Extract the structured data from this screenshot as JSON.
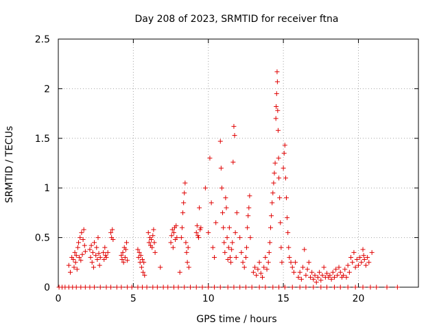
{
  "chart_data": {
    "type": "scatter",
    "title": "Day 208 of 2023, SRMTID for receiver ftna",
    "xlabel": "GPS time / hours",
    "ylabel": "SRMTID / TECUs",
    "xlim": [
      0,
      24
    ],
    "ylim": [
      0,
      2.5
    ],
    "xticks": [
      0,
      5,
      10,
      15,
      20
    ],
    "xtick_labels": [
      "0",
      "5",
      "10",
      "15",
      "20"
    ],
    "yticks": [
      0,
      0.5,
      1,
      1.5,
      2,
      2.5
    ],
    "ytick_labels": [
      "0",
      "0.5",
      "1",
      "1.5",
      "2",
      "2.5"
    ],
    "grid": true,
    "marker": "+",
    "color": "#e00000",
    "series": [
      {
        "name": "SRMTID",
        "points": [
          [
            0.05,
            0
          ],
          [
            0.25,
            0
          ],
          [
            0.45,
            0
          ],
          [
            0.7,
            0
          ],
          [
            0.95,
            0
          ],
          [
            1.2,
            0
          ],
          [
            1.5,
            0
          ],
          [
            1.8,
            0
          ],
          [
            2.1,
            0
          ],
          [
            2.4,
            0
          ],
          [
            2.8,
            0
          ],
          [
            3.2,
            0
          ],
          [
            3.5,
            0
          ],
          [
            3.9,
            0
          ],
          [
            4.2,
            0
          ],
          [
            4.6,
            0
          ],
          [
            4.9,
            0
          ],
          [
            5.3,
            0
          ],
          [
            5.6,
            0
          ],
          [
            5.9,
            0
          ],
          [
            6.3,
            0
          ],
          [
            6.6,
            0
          ],
          [
            7.0,
            0
          ],
          [
            7.3,
            0
          ],
          [
            7.7,
            0
          ],
          [
            8.0,
            0
          ],
          [
            8.4,
            0
          ],
          [
            8.8,
            0
          ],
          [
            9.2,
            0
          ],
          [
            9.6,
            0
          ],
          [
            10.0,
            0
          ],
          [
            10.4,
            0
          ],
          [
            10.8,
            0
          ],
          [
            11.3,
            0
          ],
          [
            11.7,
            0
          ],
          [
            12.1,
            0
          ],
          [
            12.5,
            0
          ],
          [
            12.9,
            0
          ],
          [
            13.4,
            0
          ],
          [
            13.8,
            0
          ],
          [
            14.3,
            0
          ],
          [
            14.7,
            0
          ],
          [
            15.1,
            0
          ],
          [
            15.6,
            0
          ],
          [
            16.1,
            0
          ],
          [
            16.5,
            0
          ],
          [
            17.0,
            0
          ],
          [
            17.5,
            0
          ],
          [
            17.9,
            0
          ],
          [
            18.4,
            0
          ],
          [
            18.8,
            0
          ],
          [
            19.3,
            0
          ],
          [
            19.8,
            0
          ],
          [
            20.3,
            0
          ],
          [
            20.8,
            0
          ],
          [
            21.2,
            0
          ],
          [
            21.9,
            0
          ],
          [
            22.6,
            0
          ],
          [
            0.7,
            0.22
          ],
          [
            0.8,
            0.15
          ],
          [
            0.9,
            0.3
          ],
          [
            1.0,
            0.28
          ],
          [
            1.05,
            0.2
          ],
          [
            1.1,
            0.35
          ],
          [
            1.15,
            0.25
          ],
          [
            1.2,
            0.32
          ],
          [
            1.25,
            0.18
          ],
          [
            1.3,
            0.4
          ],
          [
            1.35,
            0.45
          ],
          [
            1.4,
            0.3
          ],
          [
            1.45,
            0.5
          ],
          [
            1.5,
            0.27
          ],
          [
            1.55,
            0.55
          ],
          [
            1.6,
            0.33
          ],
          [
            1.65,
            0.48
          ],
          [
            1.7,
            0.58
          ],
          [
            1.75,
            0.42
          ],
          [
            1.8,
            0.36
          ],
          [
            2.1,
            0.38
          ],
          [
            2.15,
            0.3
          ],
          [
            2.2,
            0.42
          ],
          [
            2.25,
            0.25
          ],
          [
            2.3,
            0.35
          ],
          [
            2.35,
            0.2
          ],
          [
            2.4,
            0.45
          ],
          [
            2.5,
            0.32
          ],
          [
            2.55,
            0.4
          ],
          [
            2.6,
            0.28
          ],
          [
            2.65,
            0.5
          ],
          [
            2.7,
            0.34
          ],
          [
            2.75,
            0.22
          ],
          [
            2.8,
            0.3
          ],
          [
            3.0,
            0.35
          ],
          [
            3.05,
            0.28
          ],
          [
            3.1,
            0.4
          ],
          [
            3.15,
            0.32
          ],
          [
            3.2,
            0.3
          ],
          [
            3.3,
            0.35
          ],
          [
            3.5,
            0.55
          ],
          [
            3.55,
            0.5
          ],
          [
            3.6,
            0.58
          ],
          [
            3.65,
            0.48
          ],
          [
            4.2,
            0.32
          ],
          [
            4.25,
            0.28
          ],
          [
            4.3,
            0.35
          ],
          [
            4.35,
            0.25
          ],
          [
            4.4,
            0.4
          ],
          [
            4.45,
            0.3
          ],
          [
            4.5,
            0.38
          ],
          [
            4.55,
            0.45
          ],
          [
            4.6,
            0.27
          ],
          [
            5.3,
            0.38
          ],
          [
            5.35,
            0.3
          ],
          [
            5.4,
            0.35
          ],
          [
            5.45,
            0.25
          ],
          [
            5.5,
            0.32
          ],
          [
            5.55,
            0.2
          ],
          [
            5.6,
            0.28
          ],
          [
            5.65,
            0.15
          ],
          [
            5.7,
            0.25
          ],
          [
            5.75,
            0.12
          ],
          [
            6.0,
            0.55
          ],
          [
            6.05,
            0.45
          ],
          [
            6.1,
            0.5
          ],
          [
            6.15,
            0.42
          ],
          [
            6.2,
            0.48
          ],
          [
            6.25,
            0.4
          ],
          [
            6.3,
            0.52
          ],
          [
            6.35,
            0.58
          ],
          [
            6.4,
            0.45
          ],
          [
            6.45,
            0.35
          ],
          [
            6.8,
            0.2
          ],
          [
            7.5,
            0.45
          ],
          [
            7.55,
            0.52
          ],
          [
            7.6,
            0.58
          ],
          [
            7.65,
            0.4
          ],
          [
            7.7,
            0.55
          ],
          [
            7.75,
            0.6
          ],
          [
            7.8,
            0.48
          ],
          [
            7.85,
            0.62
          ],
          [
            7.9,
            0.5
          ],
          [
            8.1,
            0.15
          ],
          [
            8.2,
            0.5
          ],
          [
            8.25,
            0.6
          ],
          [
            8.3,
            0.75
          ],
          [
            8.35,
            0.85
          ],
          [
            8.4,
            0.95
          ],
          [
            8.45,
            1.05
          ],
          [
            8.5,
            0.45
          ],
          [
            8.55,
            0.35
          ],
          [
            8.6,
            0.25
          ],
          [
            8.65,
            0.4
          ],
          [
            8.7,
            0.2
          ],
          [
            9.2,
            0.55
          ],
          [
            9.25,
            0.62
          ],
          [
            9.3,
            0.52
          ],
          [
            9.35,
            0.5
          ],
          [
            9.4,
            0.8
          ],
          [
            9.45,
            0.58
          ],
          [
            9.5,
            0.6
          ],
          [
            9.8,
            1.0
          ],
          [
            10.0,
            0.55
          ],
          [
            10.1,
            1.3
          ],
          [
            10.2,
            0.85
          ],
          [
            10.3,
            0.4
          ],
          [
            10.4,
            0.3
          ],
          [
            10.5,
            0.65
          ],
          [
            10.8,
            1.47
          ],
          [
            10.85,
            1.2
          ],
          [
            10.9,
            1.0
          ],
          [
            10.95,
            0.75
          ],
          [
            11.0,
            0.6
          ],
          [
            11.05,
            0.45
          ],
          [
            11.1,
            0.35
          ],
          [
            11.15,
            0.9
          ],
          [
            11.2,
            0.8
          ],
          [
            11.25,
            0.5
          ],
          [
            11.3,
            0.28
          ],
          [
            11.35,
            0.4
          ],
          [
            11.4,
            0.6
          ],
          [
            11.45,
            0.3
          ],
          [
            11.5,
            0.25
          ],
          [
            11.55,
            0.38
          ],
          [
            11.6,
            0.45
          ],
          [
            11.65,
            1.26
          ],
          [
            11.7,
            1.62
          ],
          [
            11.75,
            1.53
          ],
          [
            11.8,
            0.55
          ],
          [
            11.85,
            0.3
          ],
          [
            11.9,
            0.75
          ],
          [
            12.1,
            0.5
          ],
          [
            12.2,
            0.35
          ],
          [
            12.3,
            0.25
          ],
          [
            12.4,
            0.2
          ],
          [
            12.5,
            0.3
          ],
          [
            12.55,
            0.4
          ],
          [
            12.6,
            0.6
          ],
          [
            12.65,
            0.72
          ],
          [
            12.7,
            0.8
          ],
          [
            12.75,
            0.92
          ],
          [
            12.8,
            0.5
          ],
          [
            13.0,
            0.15
          ],
          [
            13.1,
            0.2
          ],
          [
            13.2,
            0.12
          ],
          [
            13.3,
            0.18
          ],
          [
            13.4,
            0.25
          ],
          [
            13.5,
            0.14
          ],
          [
            13.6,
            0.1
          ],
          [
            13.7,
            0.2
          ],
          [
            13.8,
            0.3
          ],
          [
            13.9,
            0.18
          ],
          [
            14.0,
            0.25
          ],
          [
            14.05,
            0.35
          ],
          [
            14.1,
            0.45
          ],
          [
            14.15,
            0.6
          ],
          [
            14.2,
            0.72
          ],
          [
            14.25,
            0.85
          ],
          [
            14.3,
            0.95
          ],
          [
            14.35,
            1.05
          ],
          [
            14.4,
            1.15
          ],
          [
            14.45,
            1.25
          ],
          [
            14.5,
            1.7
          ],
          [
            14.52,
            1.82
          ],
          [
            14.55,
            1.95
          ],
          [
            14.58,
            2.17
          ],
          [
            14.6,
            2.07
          ],
          [
            14.62,
            1.78
          ],
          [
            14.65,
            1.58
          ],
          [
            14.68,
            1.3
          ],
          [
            14.7,
            1.1
          ],
          [
            14.75,
            0.9
          ],
          [
            14.8,
            0.65
          ],
          [
            14.85,
            0.4
          ],
          [
            14.9,
            0.25
          ],
          [
            15.0,
            1.2
          ],
          [
            15.05,
            1.35
          ],
          [
            15.1,
            1.43
          ],
          [
            15.15,
            1.1
          ],
          [
            15.2,
            0.9
          ],
          [
            15.25,
            0.7
          ],
          [
            15.3,
            0.55
          ],
          [
            15.35,
            0.4
          ],
          [
            15.4,
            0.3
          ],
          [
            15.5,
            0.25
          ],
          [
            15.6,
            0.2
          ],
          [
            15.7,
            0.15
          ],
          [
            15.8,
            0.25
          ],
          [
            16.0,
            0.1
          ],
          [
            16.1,
            0.15
          ],
          [
            16.2,
            0.08
          ],
          [
            16.3,
            0.2
          ],
          [
            16.4,
            0.38
          ],
          [
            16.5,
            0.12
          ],
          [
            16.6,
            0.18
          ],
          [
            16.7,
            0.25
          ],
          [
            16.8,
            0.1
          ],
          [
            16.9,
            0.15
          ],
          [
            17.0,
            0.08
          ],
          [
            17.1,
            0.12
          ],
          [
            17.2,
            0.05
          ],
          [
            17.3,
            0.1
          ],
          [
            17.4,
            0.15
          ],
          [
            17.5,
            0.07
          ],
          [
            17.6,
            0.12
          ],
          [
            17.7,
            0.2
          ],
          [
            17.8,
            0.1
          ],
          [
            17.9,
            0.14
          ],
          [
            18.0,
            0.1
          ],
          [
            18.1,
            0.12
          ],
          [
            18.2,
            0.08
          ],
          [
            18.3,
            0.15
          ],
          [
            18.4,
            0.1
          ],
          [
            18.5,
            0.18
          ],
          [
            18.6,
            0.12
          ],
          [
            18.7,
            0.2
          ],
          [
            18.8,
            0.15
          ],
          [
            18.9,
            0.1
          ],
          [
            19.0,
            0.12
          ],
          [
            19.1,
            0.18
          ],
          [
            19.2,
            0.1
          ],
          [
            19.3,
            0.22
          ],
          [
            19.4,
            0.15
          ],
          [
            19.5,
            0.3
          ],
          [
            19.6,
            0.25
          ],
          [
            19.7,
            0.35
          ],
          [
            19.8,
            0.2
          ],
          [
            19.9,
            0.28
          ],
          [
            20.0,
            0.22
          ],
          [
            20.1,
            0.3
          ],
          [
            20.2,
            0.25
          ],
          [
            20.3,
            0.38
          ],
          [
            20.35,
            0.32
          ],
          [
            20.4,
            0.28
          ],
          [
            20.5,
            0.22
          ],
          [
            20.6,
            0.3
          ],
          [
            20.7,
            0.25
          ],
          [
            20.9,
            0.35
          ]
        ]
      }
    ]
  }
}
